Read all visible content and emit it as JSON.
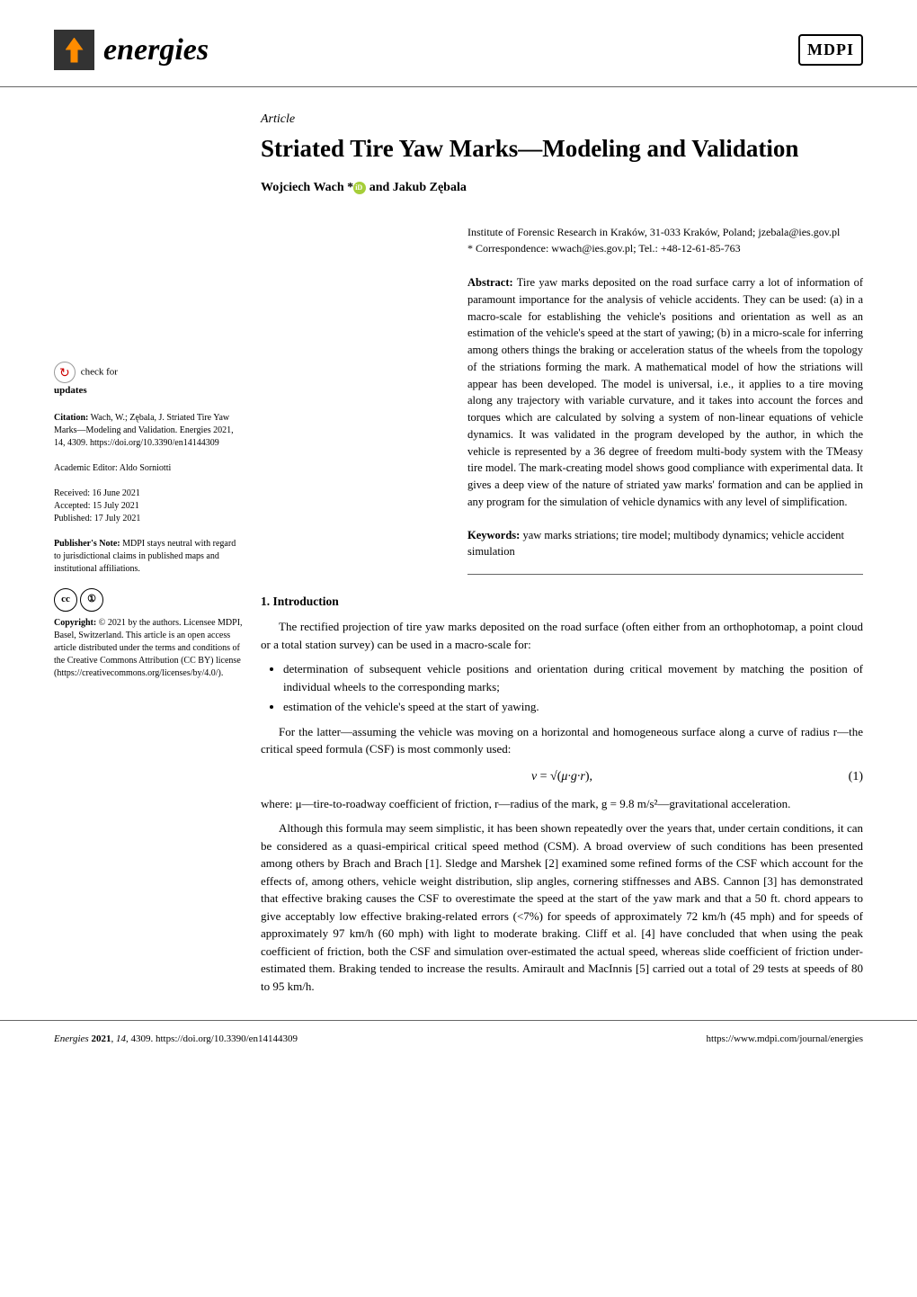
{
  "journal": {
    "name": "energies",
    "publisher_logo": "MDPI"
  },
  "article": {
    "type": "Article",
    "title": "Striated Tire Yaw Marks—Modeling and Validation",
    "authors_line": "Wojciech Wach * and Jakub Zębala"
  },
  "affiliation": {
    "institute": "Institute of Forensic Research in Kraków, 31-033 Kraków, Poland; jzebala@ies.gov.pl",
    "correspondence": "* Correspondence: wwach@ies.gov.pl; Tel.: +48-12-61-85-763"
  },
  "abstract": {
    "label": "Abstract:",
    "text": "Tire yaw marks deposited on the road surface carry a lot of information of paramount importance for the analysis of vehicle accidents. They can be used: (a) in a macro-scale for establishing the vehicle's positions and orientation as well as an estimation of the vehicle's speed at the start of yawing; (b) in a micro-scale for inferring among others things the braking or acceleration status of the wheels from the topology of the striations forming the mark. A mathematical model of how the striations will appear has been developed. The model is universal, i.e., it applies to a tire moving along any trajectory with variable curvature, and it takes into account the forces and torques which are calculated by solving a system of non-linear equations of vehicle dynamics. It was validated in the program developed by the author, in which the vehicle is represented by a 36 degree of freedom multi-body system with the TMeasy tire model. The mark-creating model shows good compliance with experimental data. It gives a deep view of the nature of striated yaw marks' formation and can be applied in any program for the simulation of vehicle dynamics with any level of simplification."
  },
  "keywords": {
    "label": "Keywords:",
    "text": "yaw marks striations; tire model; multibody dynamics; vehicle accident simulation"
  },
  "sidebar": {
    "check_updates": "check for updates",
    "citation_label": "Citation:",
    "citation_text": "Wach, W.; Zębala, J. Striated Tire Yaw Marks—Modeling and Validation. Energies 2021, 14, 4309. https://doi.org/10.3390/en14144309",
    "editor_label": "Academic Editor:",
    "editor_name": "Aldo Sorniotti",
    "received_label": "Received:",
    "received_date": "16 June 2021",
    "accepted_label": "Accepted:",
    "accepted_date": "15 July 2021",
    "published_label": "Published:",
    "published_date": "17 July 2021",
    "publisher_note_label": "Publisher's Note:",
    "publisher_note": "MDPI stays neutral with regard to jurisdictional claims in published maps and institutional affiliations.",
    "copyright_label": "Copyright:",
    "copyright_text": "© 2021 by the authors. Licensee MDPI, Basel, Switzerland. This article is an open access article distributed under the terms and conditions of the Creative Commons Attribution (CC BY) license (https://creativecommons.org/licenses/by/4.0/)."
  },
  "section1": {
    "heading": "1. Introduction",
    "p1": "The rectified projection of tire yaw marks deposited on the road surface (often either from an orthophotomap, a point cloud or a total station survey) can be used in a macro-scale for:",
    "bullets": {
      "b1": "determination of subsequent vehicle positions and orientation during critical movement by matching the position of individual wheels to the corresponding marks;",
      "b2": "estimation of the vehicle's speed at the start of yawing."
    },
    "p2": "For the latter—assuming the vehicle was moving on a horizontal and homogeneous surface along a curve of radius r—the critical speed formula (CSF) is most commonly used:",
    "equation": {
      "formula": "v = √(μ·g·r),",
      "number": "(1)"
    },
    "p3": "where: μ—tire-to-roadway coefficient of friction, r—radius of the mark, g = 9.8 m/s²—gravitational acceleration.",
    "p4": "Although this formula may seem simplistic, it has been shown repeatedly over the years that, under certain conditions, it can be considered as a quasi-empirical critical speed method (CSM). A broad overview of such conditions has been presented among others by Brach and Brach [1]. Sledge and Marshek [2] examined some refined forms of the CSF which account for the effects of, among others, vehicle weight distribution, slip angles, cornering stiffnesses and ABS. Cannon [3] has demonstrated that effective braking causes the CSF to overestimate the speed at the start of the yaw mark and that a 50 ft. chord appears to give acceptably low effective braking-related errors (<7%) for speeds of approximately 72 km/h (45 mph) and for speeds of approximately 97 km/h (60 mph) with light to moderate braking. Cliff et al. [4] have concluded that when using the peak coefficient of friction, both the CSF and simulation over-estimated the actual speed, whereas slide coefficient of friction under-estimated them. Braking tended to increase the results. Amirault and MacInnis [5] carried out a total of 29 tests at speeds of 80 to 95 km/h."
  },
  "footer": {
    "left": "Energies 2021, 14, 4309. https://doi.org/10.3390/en14144309",
    "right": "https://www.mdpi.com/journal/energies"
  }
}
